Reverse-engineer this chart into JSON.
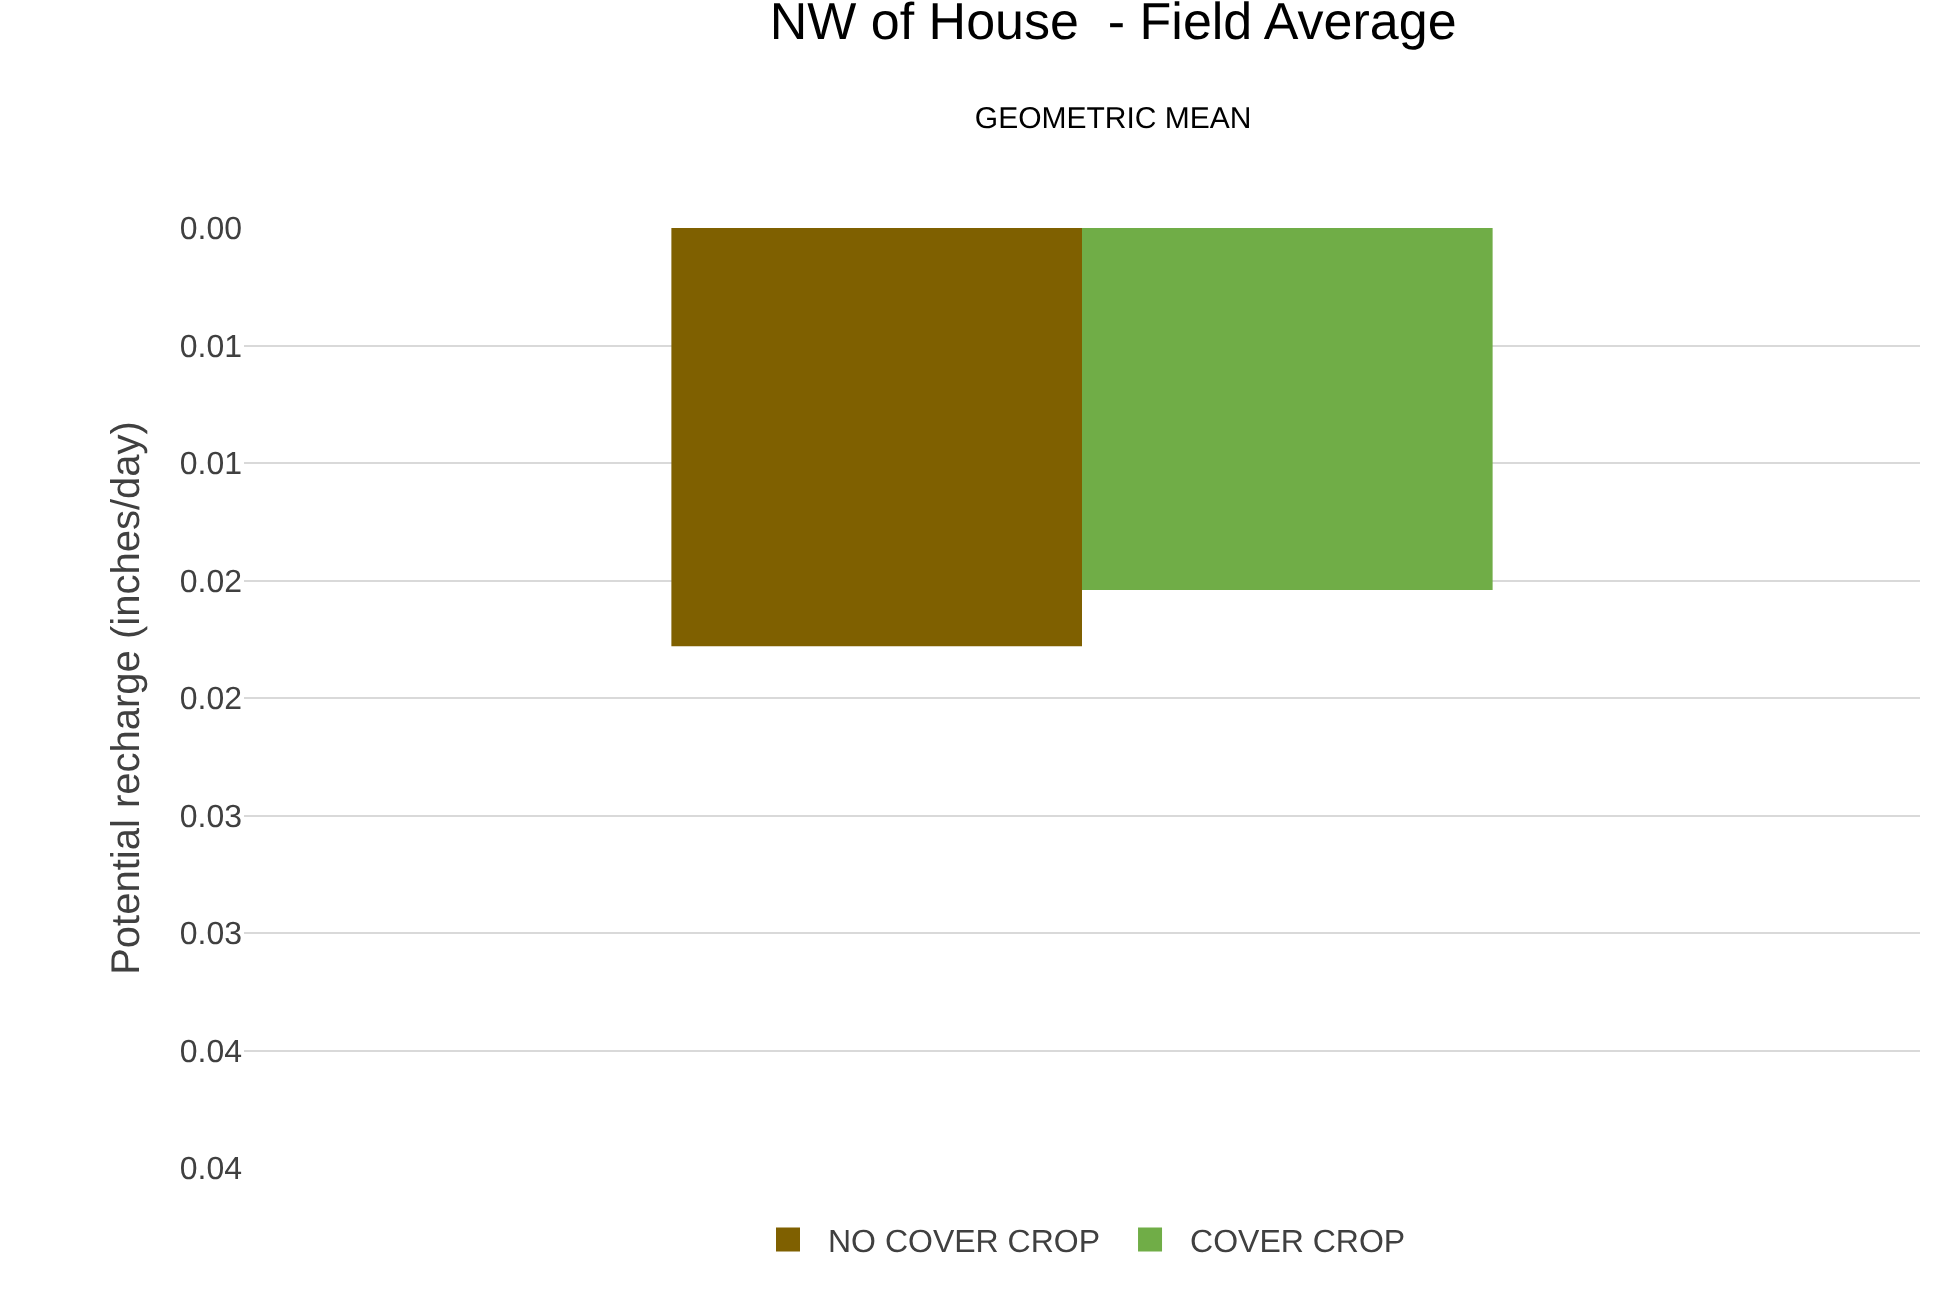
{
  "chart_data": {
    "type": "bar",
    "title": "NW of House  - Field Average",
    "subtitle": "GEOMETRIC MEAN",
    "ylabel": "Potential recharge (inches/day)",
    "categories": [
      null
    ],
    "series": [
      {
        "name": "NO COVER CROP",
        "color": "#7f6000",
        "values": [
          0.0178
        ]
      },
      {
        "name": "COVER CROP",
        "color": "#70ad47",
        "values": [
          0.0154
        ]
      }
    ],
    "ylim": [
      0.04,
      0
    ],
    "yticks": [
      {
        "value": 0,
        "label": "0.00"
      },
      {
        "value": 0.005,
        "label": "0.01"
      },
      {
        "value": 0.01,
        "label": "0.01"
      },
      {
        "value": 0.015,
        "label": "0.02"
      },
      {
        "value": 0.02,
        "label": "0.02"
      },
      {
        "value": 0.025,
        "label": "0.03"
      },
      {
        "value": 0.03,
        "label": "0.03"
      },
      {
        "value": 0.035,
        "label": "0.04"
      },
      {
        "value": 0.04,
        "label": "0.04"
      }
    ],
    "grid": "y",
    "legend": "bottom"
  }
}
